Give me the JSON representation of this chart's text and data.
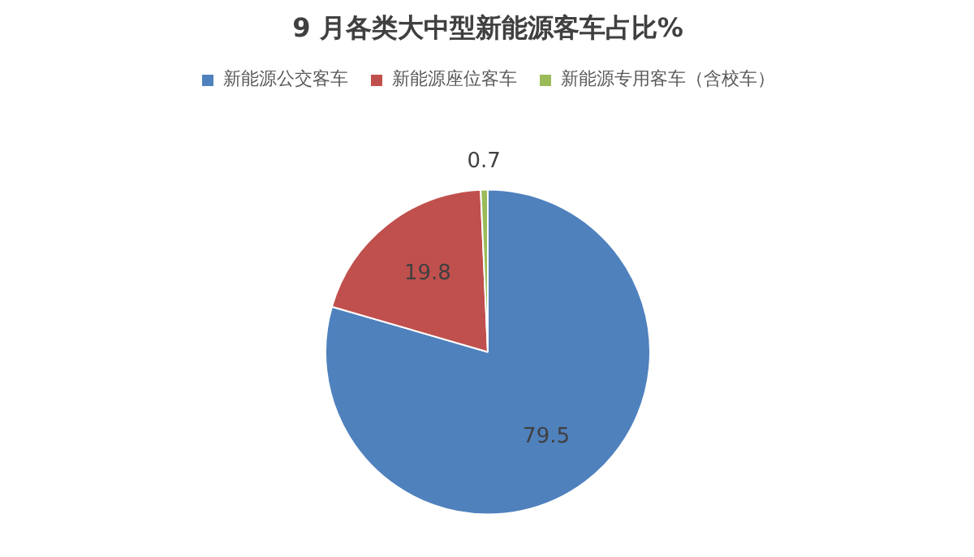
{
  "chart_data": {
    "type": "pie",
    "title": "9 月各类大中型新能源客车占比%",
    "categories": [
      "新能源公交客车",
      "新能源座位客车",
      "新能源专用客车（含校车）"
    ],
    "values": [
      79.5,
      19.8,
      0.7
    ],
    "colors": [
      "#4f81bd",
      "#c0504d",
      "#9bbb59"
    ],
    "data_labels": true,
    "legend": "top"
  }
}
